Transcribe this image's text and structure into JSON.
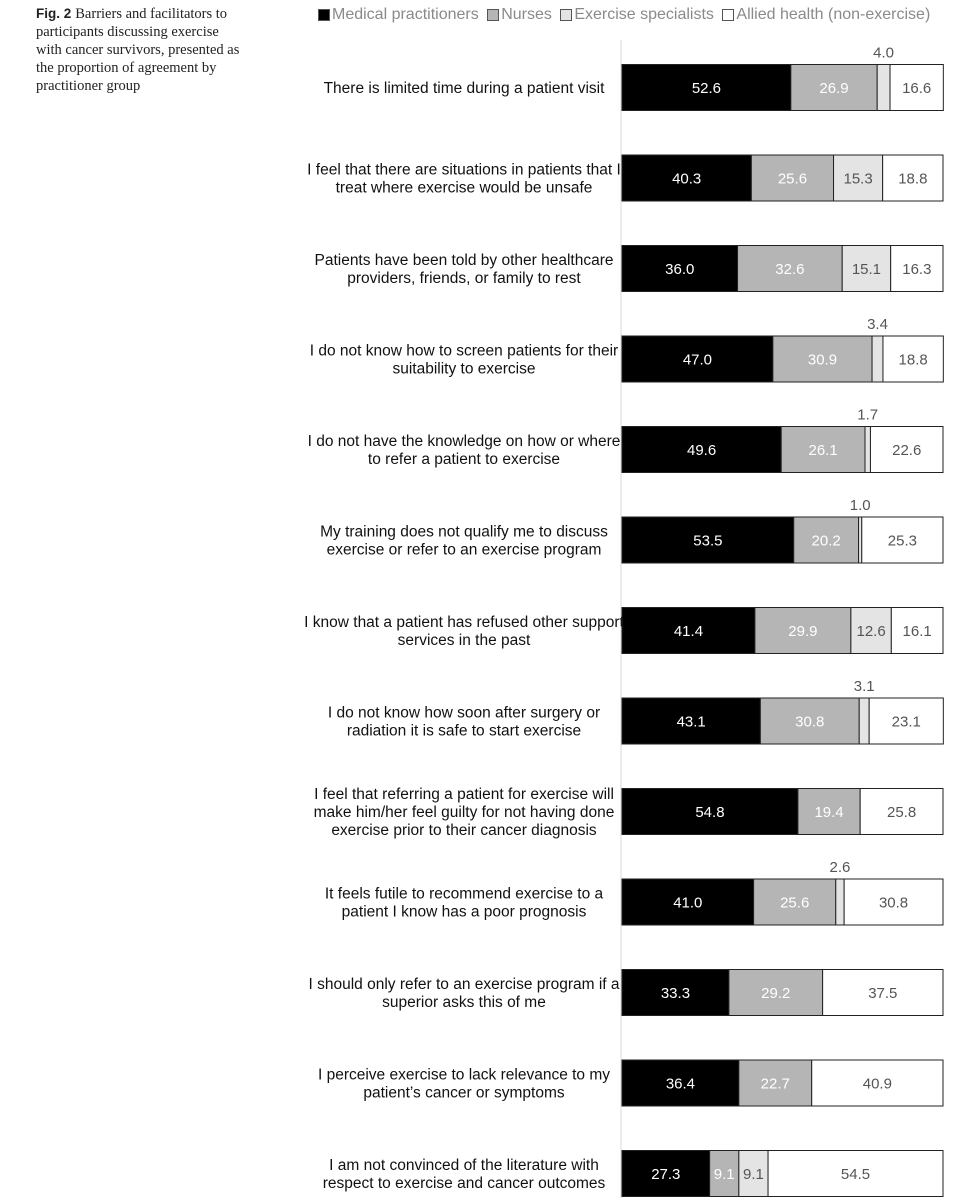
{
  "caption": {
    "label": "Fig. 2",
    "text": "Barriers and facilitators to participants discussing exercise with cancer survivors, presented as the proportion of agreement by practitioner group"
  },
  "chart_data": {
    "type": "bar",
    "orientation": "horizontal",
    "stacked": true,
    "xlim": [
      0,
      100
    ],
    "grid": false,
    "legend_position": "top",
    "categories": [
      "There is limited time during a patient visit",
      "I feel that there are situations in patients that I treat where exercise would be unsafe",
      "Patients have been told by other healthcare providers, friends, or family to rest",
      "I do not know how to screen patients for their suitability to exercise",
      "I do not have the knowledge on how or where to refer a patient to exercise",
      "My training does not qualify me to discuss exercise or refer to an exercise program",
      "I know that a patient has refused other support services in the past",
      "I do not know how soon after surgery or radiation it is safe to start exercise",
      "I feel that referring a patient for exercise will make him/her feel guilty for not having done exercise prior to their cancer diagnosis",
      "It feels futile to recommend exercise to a patient I know has a poor prognosis",
      "I should only refer to an exercise program if a superior asks this of me",
      "I perceive exercise to lack relevance to my patient’s cancer or symptoms",
      "I am not convinced of the literature with respect to exercise and cancer outcomes"
    ],
    "category_lines": [
      [
        "There is limited time during a patient visit"
      ],
      [
        "I feel that there are situations in patients that I",
        "treat where exercise would be unsafe"
      ],
      [
        "Patients have been told by other healthcare",
        "providers, friends, or family to rest"
      ],
      [
        "I do not know how to screen patients for their",
        "suitability to exercise"
      ],
      [
        "I do not have the knowledge on how or where",
        "to refer a patient to exercise"
      ],
      [
        "My training does not qualify me to discuss",
        "exercise or refer to an exercise program"
      ],
      [
        "I know that a patient has refused other support",
        "services in the past"
      ],
      [
        "I do not know how soon after surgery or",
        "radiation it is safe to start exercise"
      ],
      [
        "I feel that referring a patient for exercise will",
        "make him/her feel guilty for not having done",
        "exercise prior to their cancer diagnosis"
      ],
      [
        "It feels futile to recommend exercise to a",
        "patient I know has a poor prognosis"
      ],
      [
        "I should only refer to an exercise program if a",
        "superior asks this of me"
      ],
      [
        "I perceive exercise to lack relevance to my",
        "patient’s cancer or symptoms"
      ],
      [
        "I am not convinced of the literature with",
        "respect to exercise and cancer outcomes"
      ]
    ],
    "series": [
      {
        "name": "Medical practitioners",
        "color": "#000000",
        "label_color": "#ffffff",
        "values": [
          52.6,
          40.3,
          36.0,
          47.0,
          49.6,
          53.5,
          41.4,
          43.1,
          54.8,
          41.0,
          33.3,
          36.4,
          27.3
        ]
      },
      {
        "name": "Nurses",
        "color": "#b5b5b5",
        "label_color": "#ffffff",
        "values": [
          26.9,
          25.6,
          32.6,
          30.9,
          26.1,
          20.2,
          29.9,
          30.8,
          19.4,
          25.6,
          29.2,
          22.7,
          9.1
        ]
      },
      {
        "name": "Exercise specialists",
        "color": "#e4e4e4",
        "label_color": "#555555",
        "values": [
          4.0,
          15.3,
          15.1,
          3.4,
          1.7,
          1.0,
          12.6,
          3.1,
          0,
          2.6,
          0,
          0,
          9.1
        ]
      },
      {
        "name": "Allied health (non-exercise)",
        "color": "#ffffff",
        "label_color": "#555555",
        "values": [
          16.6,
          18.8,
          16.3,
          18.8,
          22.6,
          25.3,
          16.1,
          23.1,
          25.8,
          30.8,
          37.5,
          40.9,
          54.5
        ]
      }
    ]
  }
}
